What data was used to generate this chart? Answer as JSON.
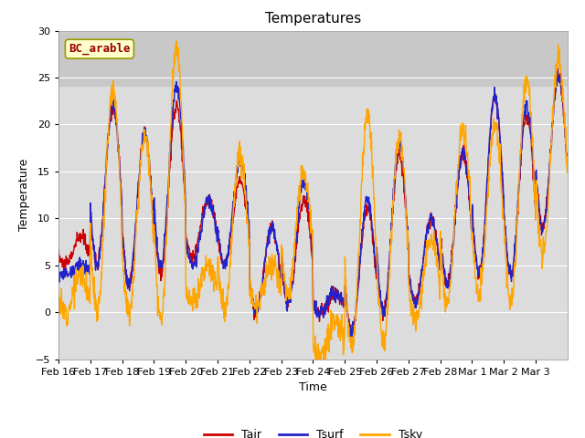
{
  "title": "Temperatures",
  "ylabel": "Temperature",
  "xlabel": "Time",
  "annotation": "BC_arable",
  "ylim": [
    -5,
    30
  ],
  "yticks": [
    -5,
    0,
    5,
    10,
    15,
    20,
    25,
    30
  ],
  "xtick_labels": [
    "Feb 16",
    "Feb 17",
    "Feb 18",
    "Feb 19",
    "Feb 20",
    "Feb 21",
    "Feb 22",
    "Feb 23",
    "Feb 24",
    "Feb 25",
    "Feb 26",
    "Feb 27",
    "Feb 28",
    "Mar 1",
    "Mar 2",
    "Mar 3"
  ],
  "series": [
    "Tair",
    "Tsurf",
    "Tsky"
  ],
  "colors_line": [
    "#CC0000",
    "#2222CC",
    "#FFA500"
  ],
  "line_width": 1.0,
  "plot_bg_color": "#DCDCDC",
  "plot_bg_top_color": "#C8C8C8",
  "annotation_facecolor": "#FFFFCC",
  "annotation_edgecolor": "#999900",
  "annotation_textcolor": "#990000",
  "n_days": 16,
  "pts_per_day": 96,
  "day_peaks_air": [
    8,
    22,
    19,
    22,
    12,
    14,
    9,
    12,
    2,
    11,
    17,
    10,
    17,
    23,
    21,
    25
  ],
  "day_troughs_air": [
    5,
    5,
    3,
    4,
    6,
    5,
    0,
    1,
    0,
    -2,
    0,
    1,
    3,
    4,
    4,
    9
  ],
  "day_peaks_surf": [
    5,
    22,
    19,
    24,
    12,
    16,
    9,
    14,
    2,
    12,
    18,
    10,
    17,
    23,
    22,
    25
  ],
  "day_troughs_surf": [
    4,
    5,
    3,
    5,
    5,
    5,
    0,
    1,
    0,
    -2,
    0,
    1,
    3,
    4,
    4,
    9
  ],
  "day_peaks_sky": [
    4,
    24,
    19,
    28,
    5,
    17,
    5,
    15,
    -1,
    21,
    19,
    8,
    20,
    20,
    25,
    27
  ],
  "day_troughs_sky": [
    0,
    0,
    0,
    -1,
    1,
    0,
    1,
    2,
    -5,
    -4,
    -3,
    -1,
    1,
    2,
    1,
    6
  ]
}
